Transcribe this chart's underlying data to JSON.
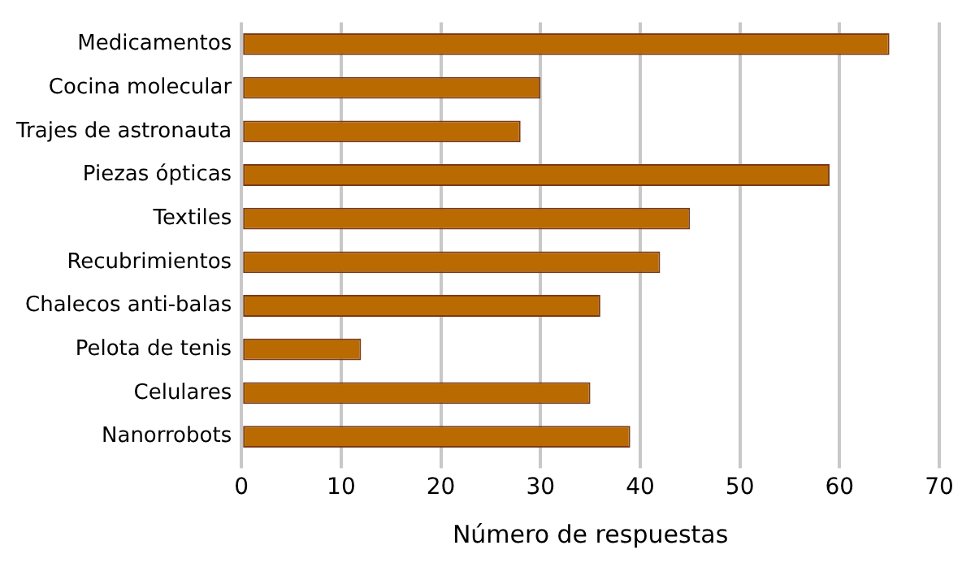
{
  "chart_data": {
    "type": "bar",
    "orientation": "horizontal",
    "xlabel": "Número de respuestas",
    "categories": [
      "Medicamentos",
      "Cocina molecular",
      "Trajes de astronauta",
      "Piezas ópticas",
      "Textiles",
      "Recubrimientos",
      "Chalecos anti-balas",
      "Pelota de tenis",
      "Celulares",
      "Nanorrobots"
    ],
    "values": [
      65,
      30,
      28,
      59,
      45,
      42,
      36,
      12,
      35,
      39
    ],
    "color": "#b96a00",
    "xlim": [
      0,
      70
    ],
    "xticks": [
      0,
      10,
      20,
      30,
      40,
      50,
      60,
      70
    ],
    "grid": "x",
    "legend": false
  }
}
